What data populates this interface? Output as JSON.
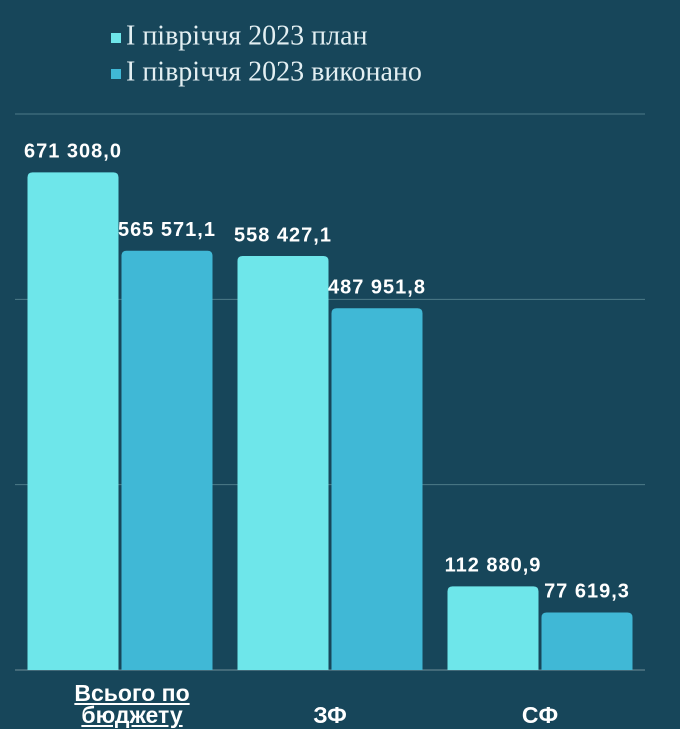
{
  "chart_data": {
    "type": "bar",
    "categories": [
      "Всього по бюджету",
      "ЗФ",
      "СФ"
    ],
    "series": [
      {
        "name": "І півріччя 2023 план",
        "color": "#6ee6ea",
        "values": [
          671308.0,
          558427.1,
          112880.9
        ],
        "value_labels": [
          "671 308,0",
          "558 427,1",
          "112 880,9"
        ]
      },
      {
        "name": "І півріччя 2023 виконано",
        "color": "#40b8d6",
        "values": [
          565571.1,
          487951.8,
          77619.3
        ],
        "value_labels": [
          "565 571,1",
          "487 951,8",
          "77 619,3"
        ]
      }
    ],
    "ylim": [
      0,
      750000
    ],
    "yticks": [
      0,
      250000,
      500000,
      750000
    ],
    "grid": true,
    "legend": "top"
  }
}
